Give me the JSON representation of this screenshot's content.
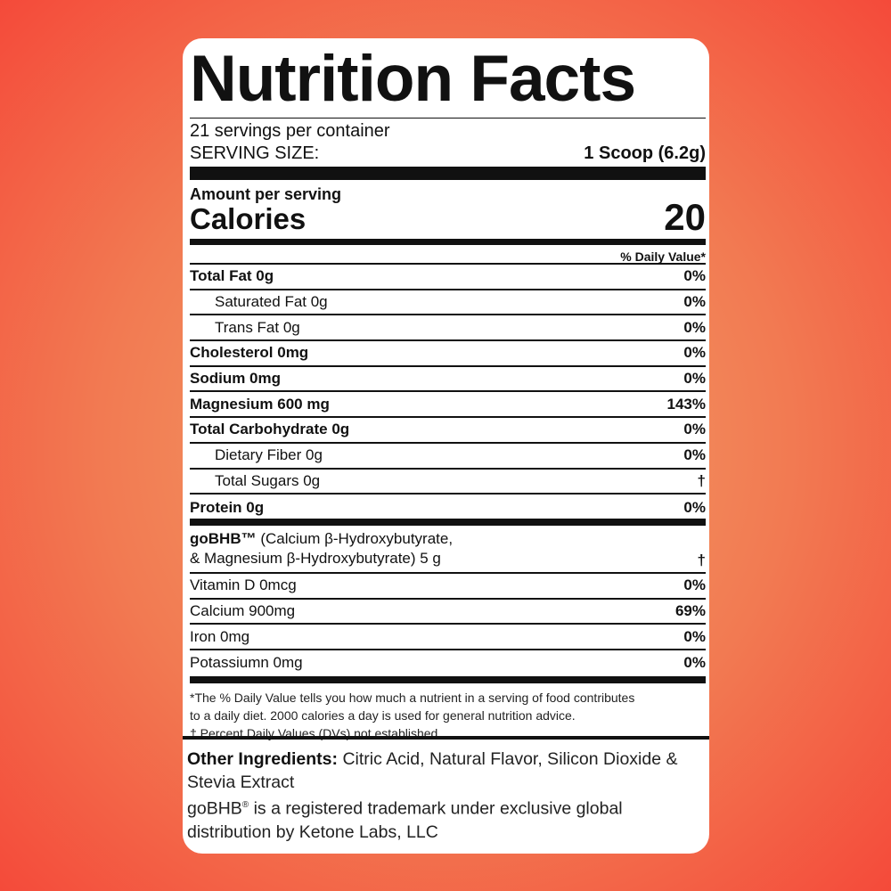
{
  "title": "Nutrition Facts",
  "servings_per_container": "21 servings per container",
  "serving_size_label": "SERVING SIZE:",
  "serving_size_value": "1 Scoop (6.2g)",
  "amount_per_serving": "Amount per serving",
  "calories_label": "Calories",
  "calories_value": "20",
  "daily_value_header": "% Daily Value*",
  "nutrients": [
    {
      "name": "Total Fat 0g",
      "dv": "0%",
      "style": "b"
    },
    {
      "name": "Saturated Fat 0g",
      "dv": "0%",
      "style": "i"
    },
    {
      "name": "Trans Fat 0g",
      "dv": "0%",
      "style": "i"
    },
    {
      "name": "Cholesterol 0mg",
      "dv": "0%",
      "style": "b"
    },
    {
      "name": "Sodium 0mg",
      "dv": "0%",
      "style": "b"
    },
    {
      "name": "Magnesium 600 mg",
      "dv": "143%",
      "style": "b"
    },
    {
      "name": "Total Carbohydrate 0g",
      "dv": "0%",
      "style": "b"
    },
    {
      "name": "Dietary Fiber 0g",
      "dv": "0%",
      "style": "i"
    },
    {
      "name": "Total Sugars 0g",
      "dv": "†",
      "style": "i"
    },
    {
      "name": "Protein 0g",
      "dv": "0%",
      "style": "b"
    }
  ],
  "gobhb": {
    "brand": "goBHB™",
    "line1": " (Calcium  β-Hydroxybutyrate,",
    "line2": "& Magnesium  β-Hydroxybutyrate) 5 g",
    "dv": "†"
  },
  "vitamins": [
    {
      "name": "Vitamin D 0mcg",
      "dv": "0%"
    },
    {
      "name": "Calcium 900mg",
      "dv": "69%"
    },
    {
      "name": "Iron 0mg",
      "dv": "0%"
    },
    {
      "name": "Potassiumn 0mg",
      "dv": "0%"
    }
  ],
  "footnotes": [
    "*The % Daily Value tells you how much a nutrient in a serving of food contributes",
    "to a daily diet. 2000 calories a day is used for general nutrition advice.",
    "† Percent Daily Values (DVs) not established."
  ],
  "other_ingredients_label": "Other Ingredients:",
  "other_ingredients": " Citric Acid, Natural Flavor, Silicon Dioxide & Stevia Extract",
  "trademark_brand": "goBHB",
  "trademark_symbol": "®",
  "trademark_text": " is a registered trademark under exclusive global distribution by Ketone Labs, LLC"
}
